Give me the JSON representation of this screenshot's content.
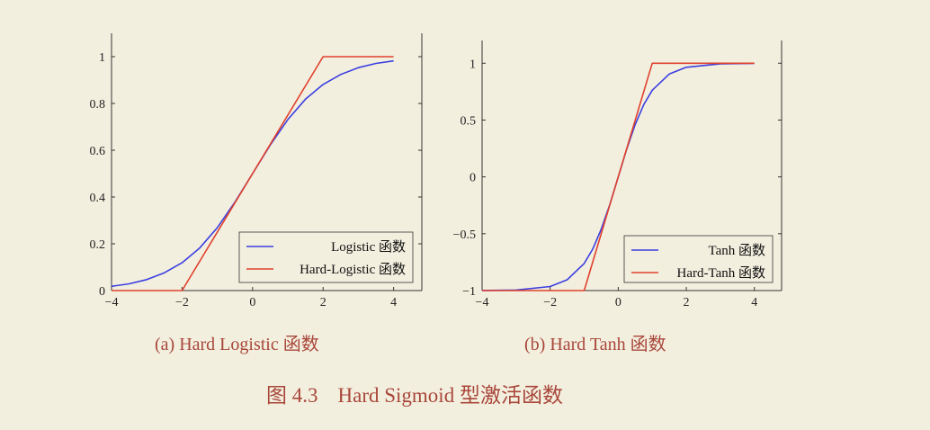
{
  "figure": {
    "number_label": "图 4.3",
    "title": "Hard Sigmoid 型激活函数",
    "colors": {
      "background": "#f3efdf",
      "caption": "#a8473a",
      "blue": "#3b3fe0",
      "red": "#e0412c"
    }
  },
  "chart_data": [
    {
      "type": "line",
      "caption": "(a) Hard Logistic 函数",
      "xlabel": "",
      "ylabel": "",
      "xlim": [
        -4,
        4.8
      ],
      "ylim": [
        0,
        1.1
      ],
      "xticks": [
        -4,
        -2,
        0,
        2,
        4
      ],
      "xtick_labels": [
        "−4",
        "−2",
        "0",
        "2",
        "4"
      ],
      "yticks": [
        0,
        0.2,
        0.4,
        0.6,
        0.8,
        1
      ],
      "ytick_labels": [
        "0",
        "0.2",
        "0.4",
        "0.6",
        "0.8",
        "1"
      ],
      "grid": false,
      "legend_position": "bottom-right",
      "series": [
        {
          "name": "Logistic 函数",
          "color": "#3b3fe0",
          "x": [
            -4,
            -3.5,
            -3,
            -2.5,
            -2,
            -1.5,
            -1,
            -0.5,
            0,
            0.5,
            1,
            1.5,
            2,
            2.5,
            3,
            3.5,
            4
          ],
          "y": [
            0.018,
            0.029,
            0.047,
            0.076,
            0.119,
            0.182,
            0.269,
            0.378,
            0.5,
            0.622,
            0.731,
            0.818,
            0.881,
            0.924,
            0.953,
            0.971,
            0.982
          ]
        },
        {
          "name": "Hard-Logistic 函数",
          "color": "#e0412c",
          "x": [
            -4,
            -2,
            2,
            4
          ],
          "y": [
            0,
            0,
            1,
            1
          ]
        }
      ]
    },
    {
      "type": "line",
      "caption": "(b) Hard Tanh 函数",
      "xlabel": "",
      "ylabel": "",
      "xlim": [
        -4,
        4.8
      ],
      "ylim": [
        -1,
        1.2
      ],
      "xticks": [
        -4,
        -2,
        0,
        2,
        4
      ],
      "xtick_labels": [
        "−4",
        "−2",
        "0",
        "2",
        "4"
      ],
      "yticks": [
        -1,
        -0.5,
        0,
        0.5,
        1
      ],
      "ytick_labels": [
        "−1",
        "−0.5",
        "0",
        "0.5",
        "1"
      ],
      "grid": false,
      "legend_position": "bottom-right",
      "series": [
        {
          "name": "Tanh 函数",
          "color": "#3b3fe0",
          "x": [
            -4,
            -3,
            -2,
            -1.5,
            -1,
            -0.75,
            -0.5,
            -0.25,
            0,
            0.25,
            0.5,
            0.75,
            1,
            1.5,
            2,
            3,
            4
          ],
          "y": [
            -0.999,
            -0.995,
            -0.964,
            -0.905,
            -0.762,
            -0.635,
            -0.462,
            -0.245,
            0,
            0.245,
            0.462,
            0.635,
            0.762,
            0.905,
            0.964,
            0.995,
            0.999
          ]
        },
        {
          "name": "Hard-Tanh 函数",
          "color": "#e0412c",
          "x": [
            -4,
            -1,
            1,
            4
          ],
          "y": [
            -1,
            -1,
            1,
            1
          ]
        }
      ]
    }
  ]
}
